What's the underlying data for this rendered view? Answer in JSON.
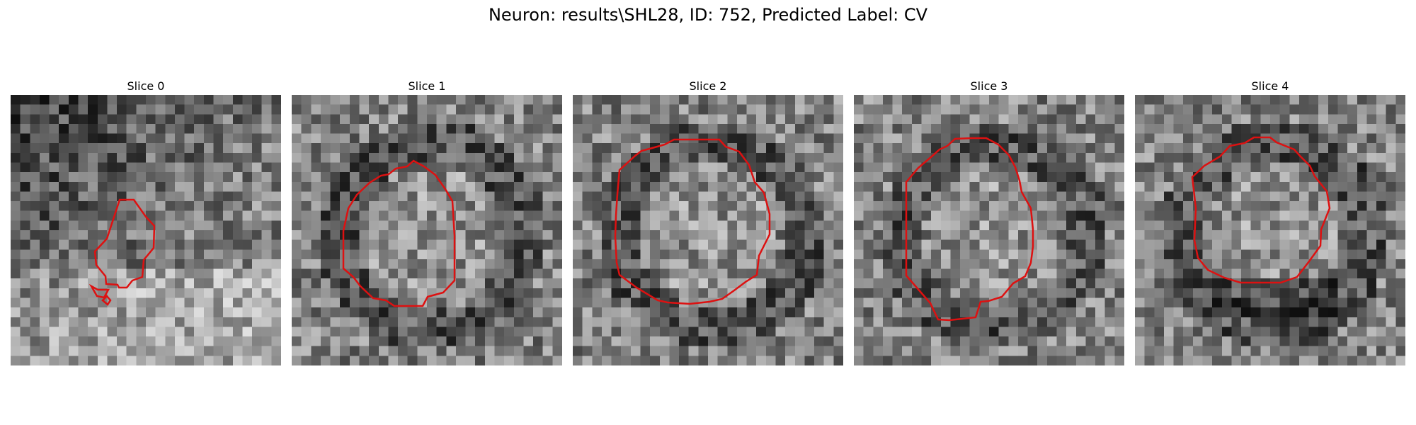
{
  "figure": {
    "title": "Neuron: results\\SHL28, ID: 752, Predicted Label: CV"
  },
  "slices": [
    {
      "title": "Slice 0",
      "grid_size": 28,
      "contour_color": "#dd1111",
      "seed": 11,
      "bias": "dark-top-left"
    },
    {
      "title": "Slice 1",
      "grid_size": 28,
      "contour_color": "#dd1111",
      "seed": 23,
      "bias": "ring"
    },
    {
      "title": "Slice 2",
      "grid_size": 28,
      "contour_color": "#dd1111",
      "seed": 37,
      "bias": "ring"
    },
    {
      "title": "Slice 3",
      "grid_size": 28,
      "contour_color": "#dd1111",
      "seed": 41,
      "bias": "ring"
    },
    {
      "title": "Slice 4",
      "grid_size": 28,
      "contour_color": "#dd1111",
      "seed": 53,
      "bias": "ring-dark-bottom"
    }
  ],
  "colors": {
    "colormap": "gray",
    "contour": "#dd1111",
    "background": "#ffffff"
  }
}
